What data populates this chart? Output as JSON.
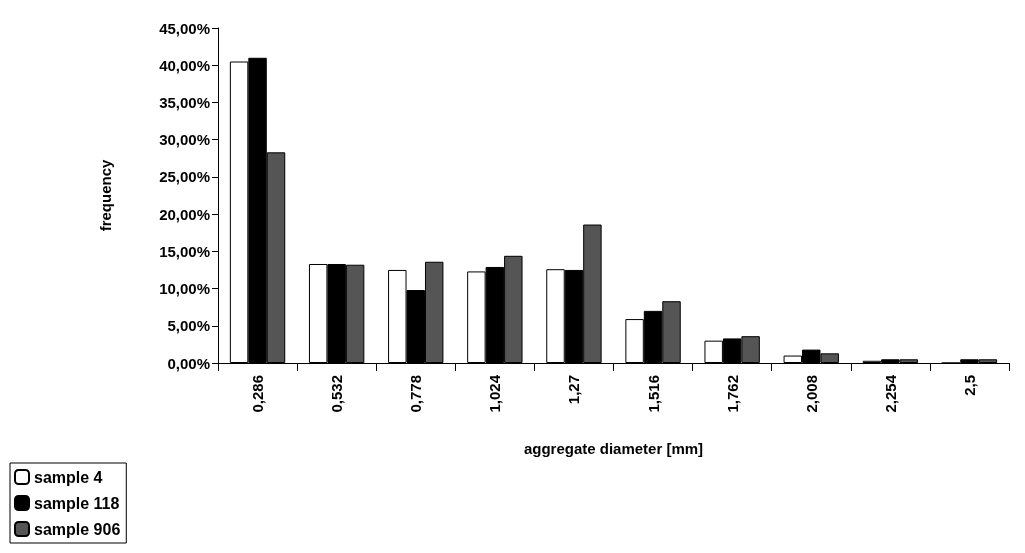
{
  "chart_data": {
    "type": "bar",
    "xlabel": "aggregate diameter [mm]",
    "ylabel": "frequency",
    "categories": [
      "0,286",
      "0,532",
      "0,778",
      "1,024",
      "1,27",
      "1,516",
      "1,762",
      "2,008",
      "2,254",
      "2,5"
    ],
    "series": [
      {
        "name": "sample 4",
        "color": "#ffffff",
        "values": [
          40.5,
          13.3,
          12.5,
          12.3,
          12.6,
          5.9,
          3.0,
          1.0,
          0.3,
          0
        ]
      },
      {
        "name": "sample 118",
        "color": "#000000",
        "values": [
          41.0,
          13.3,
          9.8,
          12.9,
          12.5,
          7.0,
          3.3,
          1.8,
          0.5,
          0.5
        ]
      },
      {
        "name": "sample 906",
        "color": "#555555",
        "values": [
          28.3,
          13.2,
          13.6,
          14.4,
          18.6,
          8.3,
          3.6,
          1.3,
          0.5,
          0.5
        ]
      }
    ],
    "ylim": [
      0,
      45
    ],
    "yticks": [
      {
        "value": 0,
        "label": "0,00%"
      },
      {
        "value": 5,
        "label": "5,00%"
      },
      {
        "value": 10,
        "label": "10,00%"
      },
      {
        "value": 15,
        "label": "15,00%"
      },
      {
        "value": 20,
        "label": "20,00%"
      },
      {
        "value": 25,
        "label": "25,00%"
      },
      {
        "value": 30,
        "label": "30,00%"
      },
      {
        "value": 35,
        "label": "35,00%"
      },
      {
        "value": 40,
        "label": "40,00%"
      },
      {
        "value": 45,
        "label": "45,00%"
      }
    ],
    "grid": false,
    "legend": "bottom left"
  }
}
